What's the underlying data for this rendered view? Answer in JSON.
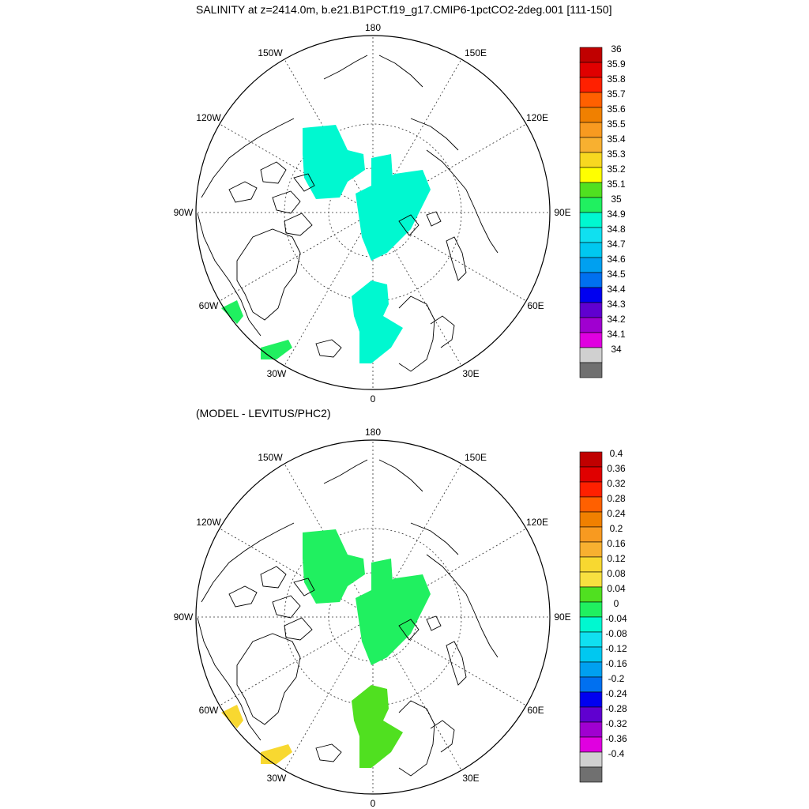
{
  "panels": [
    {
      "id": "top",
      "title": "SALINITY at z=2414.0m, b.e21.B1PCT.f19_g17.CMIP6-1pctCO2-2deg.001 [111-150]",
      "longitude_labels": [
        "180",
        "150E",
        "120E",
        "90E",
        "60E",
        "30E",
        "0",
        "30W",
        "60W",
        "90W",
        "120W",
        "150W"
      ],
      "colorbar": {
        "labels": [
          "36",
          "35.9",
          "35.8",
          "35.7",
          "35.6",
          "35.5",
          "35.4",
          "35.3",
          "35.2",
          "35.1",
          "35",
          "34.9",
          "34.8",
          "34.7",
          "34.6",
          "34.5",
          "34.4",
          "34.3",
          "34.2",
          "34.1",
          "34"
        ],
        "colors": [
          "#c00000",
          "#e00000",
          "#ff2000",
          "#ff6000",
          "#f08000",
          "#f89a20",
          "#f8b030",
          "#f8d820",
          "#ffff00",
          "#50e020",
          "#20f060",
          "#00f8d0",
          "#10e0f0",
          "#00c8f0",
          "#00a0f0",
          "#0070f0",
          "#0000f0",
          "#6000d0",
          "#a000d0",
          "#e000e0",
          "#d0d0d0",
          "#707070"
        ]
      },
      "region_colors": {
        "arctic": "#00f8d0",
        "nordic": "#00f8d0",
        "labrador": "#20f060"
      }
    },
    {
      "id": "bottom",
      "title": "(MODEL - LEVITUS/PHC2)",
      "longitude_labels": [
        "180",
        "150E",
        "120E",
        "90E",
        "60E",
        "30E",
        "0",
        "30W",
        "60W",
        "90W",
        "120W",
        "150W"
      ],
      "colorbar": {
        "labels": [
          "0.4",
          "0.36",
          "0.32",
          "0.28",
          "0.24",
          "0.2",
          "0.16",
          "0.12",
          "0.08",
          "0.04",
          "0",
          "-0.04",
          "-0.08",
          "-0.12",
          "-0.16",
          "-0.2",
          "-0.24",
          "-0.28",
          "-0.32",
          "-0.36",
          "-0.4"
        ],
        "colors": [
          "#c00000",
          "#e00000",
          "#ff2000",
          "#ff6000",
          "#f08000",
          "#f89a20",
          "#f8b030",
          "#f8d830",
          "#f8e040",
          "#50e020",
          "#20f060",
          "#00f8d0",
          "#10e0f0",
          "#00c8f0",
          "#00a0f0",
          "#0070f0",
          "#0000f0",
          "#6000d0",
          "#a000d0",
          "#e000e0",
          "#d0d0d0",
          "#707070"
        ]
      },
      "region_colors": {
        "arctic": "#20f060",
        "nordic": "#50e020",
        "labrador": "#f8d830"
      }
    }
  ]
}
